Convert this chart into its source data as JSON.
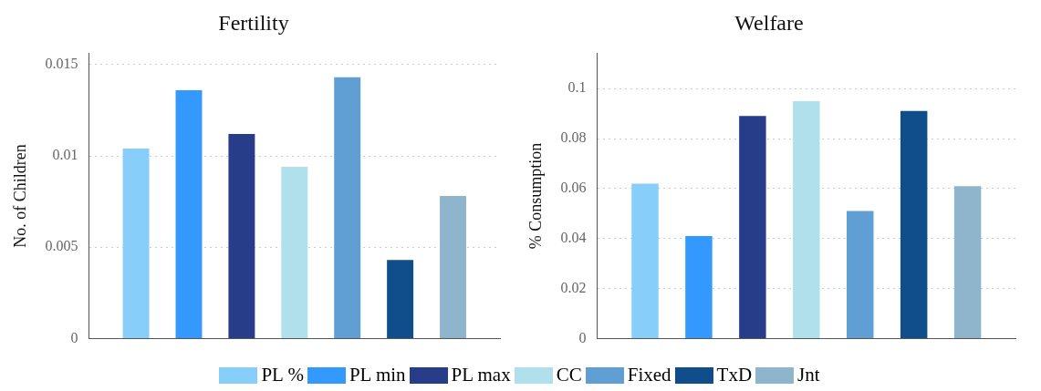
{
  "chart_data": [
    {
      "type": "bar",
      "title": "Fertility",
      "ylabel": "No. of Children",
      "categories": [
        null
      ],
      "ylim": [
        0,
        0.0156
      ],
      "yticks": [
        0,
        0.005,
        0.01,
        0.015
      ],
      "grid": "y",
      "legend": "bottom",
      "series": [
        {
          "name": "PL %",
          "color": "#87cefa",
          "values": [
            0.0104
          ]
        },
        {
          "name": "PL min",
          "color": "#3399ff",
          "values": [
            0.0136
          ]
        },
        {
          "name": "PL max",
          "color": "#283d8a",
          "values": [
            0.0112
          ]
        },
        {
          "name": "CC",
          "color": "#b0e0ec",
          "values": [
            0.0094
          ]
        },
        {
          "name": "Fixed",
          "color": "#5f9fd3",
          "values": [
            0.0143
          ]
        },
        {
          "name": "TxD",
          "color": "#104e8b",
          "values": [
            0.0043
          ]
        },
        {
          "name": "Jnt",
          "color": "#8fb5cc",
          "values": [
            0.0078
          ]
        }
      ]
    },
    {
      "type": "bar",
      "title": "Welfare",
      "ylabel": "% Consumption",
      "categories": [
        null
      ],
      "ylim": [
        0,
        0.114
      ],
      "yticks": [
        0,
        0.02,
        0.04,
        0.06,
        0.08,
        0.1
      ],
      "grid": "y",
      "series": [
        {
          "color": "#87cefa",
          "values": [
            0.062
          ]
        },
        {
          "color": "#3399ff",
          "values": [
            0.041
          ]
        },
        {
          "color": "#283d8a",
          "values": [
            0.089
          ]
        },
        {
          "color": "#b0e0ec",
          "values": [
            0.095
          ]
        },
        {
          "color": "#5f9fd3",
          "values": [
            0.051
          ]
        },
        {
          "color": "#104e8b",
          "values": [
            0.091
          ]
        },
        {
          "color": "#8fb5cc",
          "values": [
            0.061
          ]
        }
      ]
    }
  ]
}
